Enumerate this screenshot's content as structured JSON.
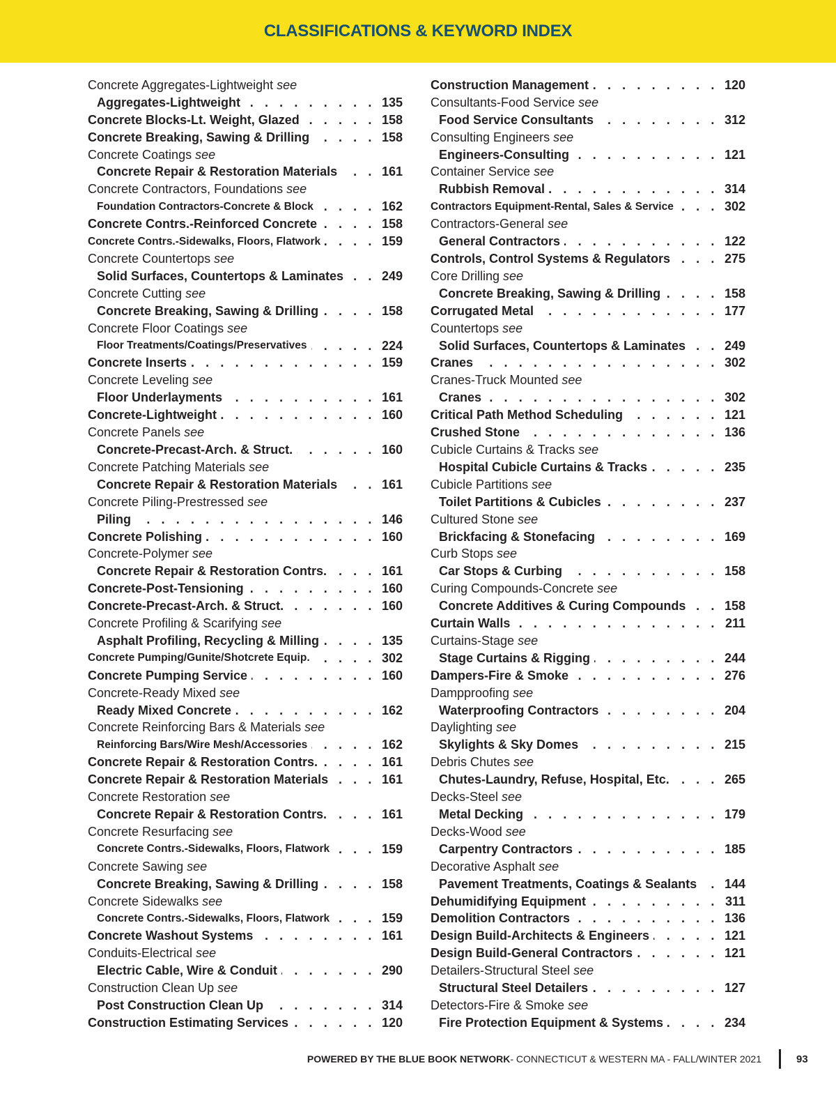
{
  "header": {
    "title": "CLASSIFICATIONS & KEYWORD INDEX",
    "background": "#f8e11a",
    "title_color": "#17506e"
  },
  "see_word": "see",
  "columns": [
    {
      "entries": [
        {
          "type": "see",
          "label": "Concrete Aggregates-Lightweight"
        },
        {
          "type": "ref",
          "label": "Aggregates-Lightweight",
          "page": "135"
        },
        {
          "type": "main",
          "label": "Concrete Blocks-Lt. Weight, Glazed",
          "page": "158"
        },
        {
          "type": "main",
          "label": "Concrete Breaking, Sawing & Drilling",
          "page": "158"
        },
        {
          "type": "see",
          "label": "Concrete Coatings"
        },
        {
          "type": "ref",
          "label": "Concrete Repair & Restoration Materials",
          "page": "161"
        },
        {
          "type": "see",
          "label": "Concrete Contractors, Foundations"
        },
        {
          "type": "ref",
          "label": "Foundation Contractors-Concrete & Block",
          "page": "162",
          "condensed": true
        },
        {
          "type": "main",
          "label": "Concrete Contrs.-Reinforced Concrete",
          "page": "158"
        },
        {
          "type": "main",
          "label": "Concrete Contrs.-Sidewalks, Floors, Flatwork",
          "page": "159",
          "condensed": true
        },
        {
          "type": "see",
          "label": "Concrete Countertops"
        },
        {
          "type": "ref",
          "label": "Solid Surfaces, Countertops & Laminates",
          "page": "249"
        },
        {
          "type": "see",
          "label": "Concrete Cutting"
        },
        {
          "type": "ref",
          "label": "Concrete Breaking, Sawing & Drilling",
          "page": "158"
        },
        {
          "type": "see",
          "label": "Concrete Floor Coatings"
        },
        {
          "type": "ref",
          "label": "Floor Treatments/Coatings/Preservatives",
          "page": "224",
          "condensed": true
        },
        {
          "type": "main",
          "label": "Concrete Inserts",
          "page": "159"
        },
        {
          "type": "see",
          "label": "Concrete Leveling"
        },
        {
          "type": "ref",
          "label": "Floor Underlayments",
          "page": "161"
        },
        {
          "type": "main",
          "label": "Concrete-Lightweight",
          "page": "160"
        },
        {
          "type": "see",
          "label": "Concrete Panels"
        },
        {
          "type": "ref",
          "label": "Concrete-Precast-Arch. & Struct.",
          "page": "160"
        },
        {
          "type": "see",
          "label": "Concrete Patching Materials"
        },
        {
          "type": "ref",
          "label": "Concrete Repair & Restoration Materials",
          "page": "161"
        },
        {
          "type": "see",
          "label": "Concrete Piling-Prestressed"
        },
        {
          "type": "ref",
          "label": "Piling",
          "page": "146"
        },
        {
          "type": "main",
          "label": "Concrete Polishing",
          "page": "160"
        },
        {
          "type": "see",
          "label": "Concrete-Polymer"
        },
        {
          "type": "ref",
          "label": "Concrete Repair & Restoration Contrs.",
          "page": "161"
        },
        {
          "type": "main",
          "label": "Concrete-Post-Tensioning",
          "page": "160"
        },
        {
          "type": "main",
          "label": "Concrete-Precast-Arch. & Struct.",
          "page": "160"
        },
        {
          "type": "see",
          "label": "Concrete Profiling & Scarifying"
        },
        {
          "type": "ref",
          "label": "Asphalt Profiling, Recycling & Milling",
          "page": "135"
        },
        {
          "type": "main",
          "label": "Concrete Pumping/Gunite/Shotcrete Equip.",
          "page": "302",
          "condensed": true
        },
        {
          "type": "main",
          "label": "Concrete Pumping Service",
          "page": "160"
        },
        {
          "type": "see",
          "label": "Concrete-Ready Mixed"
        },
        {
          "type": "ref",
          "label": "Ready Mixed Concrete",
          "page": "162"
        },
        {
          "type": "see",
          "label": "Concrete Reinforcing Bars & Materials"
        },
        {
          "type": "ref",
          "label": "Reinforcing Bars/Wire Mesh/Accessories",
          "page": "162",
          "condensed": true
        },
        {
          "type": "main",
          "label": "Concrete Repair & Restoration Contrs.",
          "page": "161"
        },
        {
          "type": "main",
          "label": "Concrete Repair & Restoration Materials",
          "page": "161"
        },
        {
          "type": "see",
          "label": "Concrete Restoration"
        },
        {
          "type": "ref",
          "label": "Concrete Repair & Restoration Contrs.",
          "page": "161"
        },
        {
          "type": "see",
          "label": "Concrete Resurfacing"
        },
        {
          "type": "ref",
          "label": "Concrete Contrs.-Sidewalks, Floors, Flatwork",
          "page": "159",
          "condensed": true
        },
        {
          "type": "see",
          "label": "Concrete Sawing"
        },
        {
          "type": "ref",
          "label": "Concrete Breaking, Sawing & Drilling",
          "page": "158"
        },
        {
          "type": "see",
          "label": "Concrete Sidewalks"
        },
        {
          "type": "ref",
          "label": "Concrete Contrs.-Sidewalks, Floors, Flatwork",
          "page": "159",
          "condensed": true
        },
        {
          "type": "main",
          "label": "Concrete Washout Systems",
          "page": "161"
        },
        {
          "type": "see",
          "label": "Conduits-Electrical"
        },
        {
          "type": "ref",
          "label": "Electric Cable, Wire & Conduit",
          "page": "290"
        },
        {
          "type": "see",
          "label": "Construction Clean Up"
        },
        {
          "type": "ref",
          "label": "Post Construction Clean Up",
          "page": "314"
        },
        {
          "type": "main",
          "label": "Construction Estimating Services",
          "page": "120"
        }
      ]
    },
    {
      "entries": [
        {
          "type": "main",
          "label": "Construction Management",
          "page": "120"
        },
        {
          "type": "see",
          "label": "Consultants-Food Service"
        },
        {
          "type": "ref",
          "label": "Food Service Consultants",
          "page": "312"
        },
        {
          "type": "see",
          "label": "Consulting Engineers"
        },
        {
          "type": "ref",
          "label": "Engineers-Consulting",
          "page": "121"
        },
        {
          "type": "see",
          "label": "Container Service"
        },
        {
          "type": "ref",
          "label": "Rubbish Removal",
          "page": "314"
        },
        {
          "type": "main",
          "label": "Contractors Equipment-Rental, Sales & Service",
          "page": "302",
          "condensed": true
        },
        {
          "type": "see",
          "label": "Contractors-General"
        },
        {
          "type": "ref",
          "label": "General Contractors",
          "page": "122"
        },
        {
          "type": "main",
          "label": "Controls, Control Systems & Regulators",
          "page": "275"
        },
        {
          "type": "see",
          "label": "Core Drilling"
        },
        {
          "type": "ref",
          "label": "Concrete Breaking, Sawing & Drilling",
          "page": "158"
        },
        {
          "type": "main",
          "label": "Corrugated Metal",
          "page": "177"
        },
        {
          "type": "see",
          "label": "Countertops"
        },
        {
          "type": "ref",
          "label": "Solid Surfaces, Countertops & Laminates",
          "page": "249"
        },
        {
          "type": "main",
          "label": "Cranes",
          "page": "302"
        },
        {
          "type": "see",
          "label": "Cranes-Truck Mounted"
        },
        {
          "type": "ref",
          "label": "Cranes",
          "page": "302"
        },
        {
          "type": "main",
          "label": "Critical Path Method Scheduling",
          "page": "121"
        },
        {
          "type": "main",
          "label": "Crushed Stone",
          "page": "136"
        },
        {
          "type": "see",
          "label": "Cubicle Curtains & Tracks"
        },
        {
          "type": "ref",
          "label": "Hospital Cubicle Curtains & Tracks",
          "page": "235"
        },
        {
          "type": "see",
          "label": "Cubicle Partitions"
        },
        {
          "type": "ref",
          "label": "Toilet Partitions & Cubicles",
          "page": "237"
        },
        {
          "type": "see",
          "label": "Cultured Stone"
        },
        {
          "type": "ref",
          "label": "Brickfacing & Stonefacing",
          "page": "169"
        },
        {
          "type": "see",
          "label": "Curb Stops"
        },
        {
          "type": "ref",
          "label": "Car Stops & Curbing",
          "page": "158"
        },
        {
          "type": "see",
          "label": "Curing Compounds-Concrete"
        },
        {
          "type": "ref",
          "label": "Concrete Additives & Curing Compounds",
          "page": "158"
        },
        {
          "type": "main",
          "label": "Curtain Walls",
          "page": "211"
        },
        {
          "type": "see",
          "label": "Curtains-Stage"
        },
        {
          "type": "ref",
          "label": "Stage Curtains & Rigging",
          "page": "244"
        },
        {
          "type": "main",
          "label": "Dampers-Fire & Smoke",
          "page": "276"
        },
        {
          "type": "see",
          "label": "Dampproofing"
        },
        {
          "type": "ref",
          "label": "Waterproofing Contractors",
          "page": "204"
        },
        {
          "type": "see",
          "label": "Daylighting"
        },
        {
          "type": "ref",
          "label": "Skylights & Sky Domes",
          "page": "215"
        },
        {
          "type": "see",
          "label": "Debris Chutes"
        },
        {
          "type": "ref",
          "label": "Chutes-Laundry, Refuse, Hospital, Etc.",
          "page": "265"
        },
        {
          "type": "see",
          "label": "Decks-Steel"
        },
        {
          "type": "ref",
          "label": "Metal Decking",
          "page": "179"
        },
        {
          "type": "see",
          "label": "Decks-Wood"
        },
        {
          "type": "ref",
          "label": "Carpentry Contractors",
          "page": "185"
        },
        {
          "type": "see",
          "label": "Decorative Asphalt"
        },
        {
          "type": "ref",
          "label": "Pavement Treatments, Coatings & Sealants",
          "page": "144"
        },
        {
          "type": "main",
          "label": "Dehumidifying Equipment",
          "page": "311"
        },
        {
          "type": "main",
          "label": "Demolition Contractors",
          "page": "136"
        },
        {
          "type": "main",
          "label": "Design Build-Architects & Engineers",
          "page": "121"
        },
        {
          "type": "main",
          "label": "Design Build-General Contractors",
          "page": "121"
        },
        {
          "type": "see",
          "label": "Detailers-Structural Steel"
        },
        {
          "type": "ref",
          "label": "Structural Steel Detailers",
          "page": "127"
        },
        {
          "type": "see",
          "label": "Detectors-Fire & Smoke"
        },
        {
          "type": "ref",
          "label": "Fire Protection Equipment & Systems",
          "page": "234"
        }
      ]
    }
  ],
  "footer": {
    "brand": "POWERED BY THE BLUE BOOK NETWORK",
    "edition": " - CONNECTICUT & WESTERN MA - FALL/WINTER 2021",
    "page_number": "93"
  }
}
